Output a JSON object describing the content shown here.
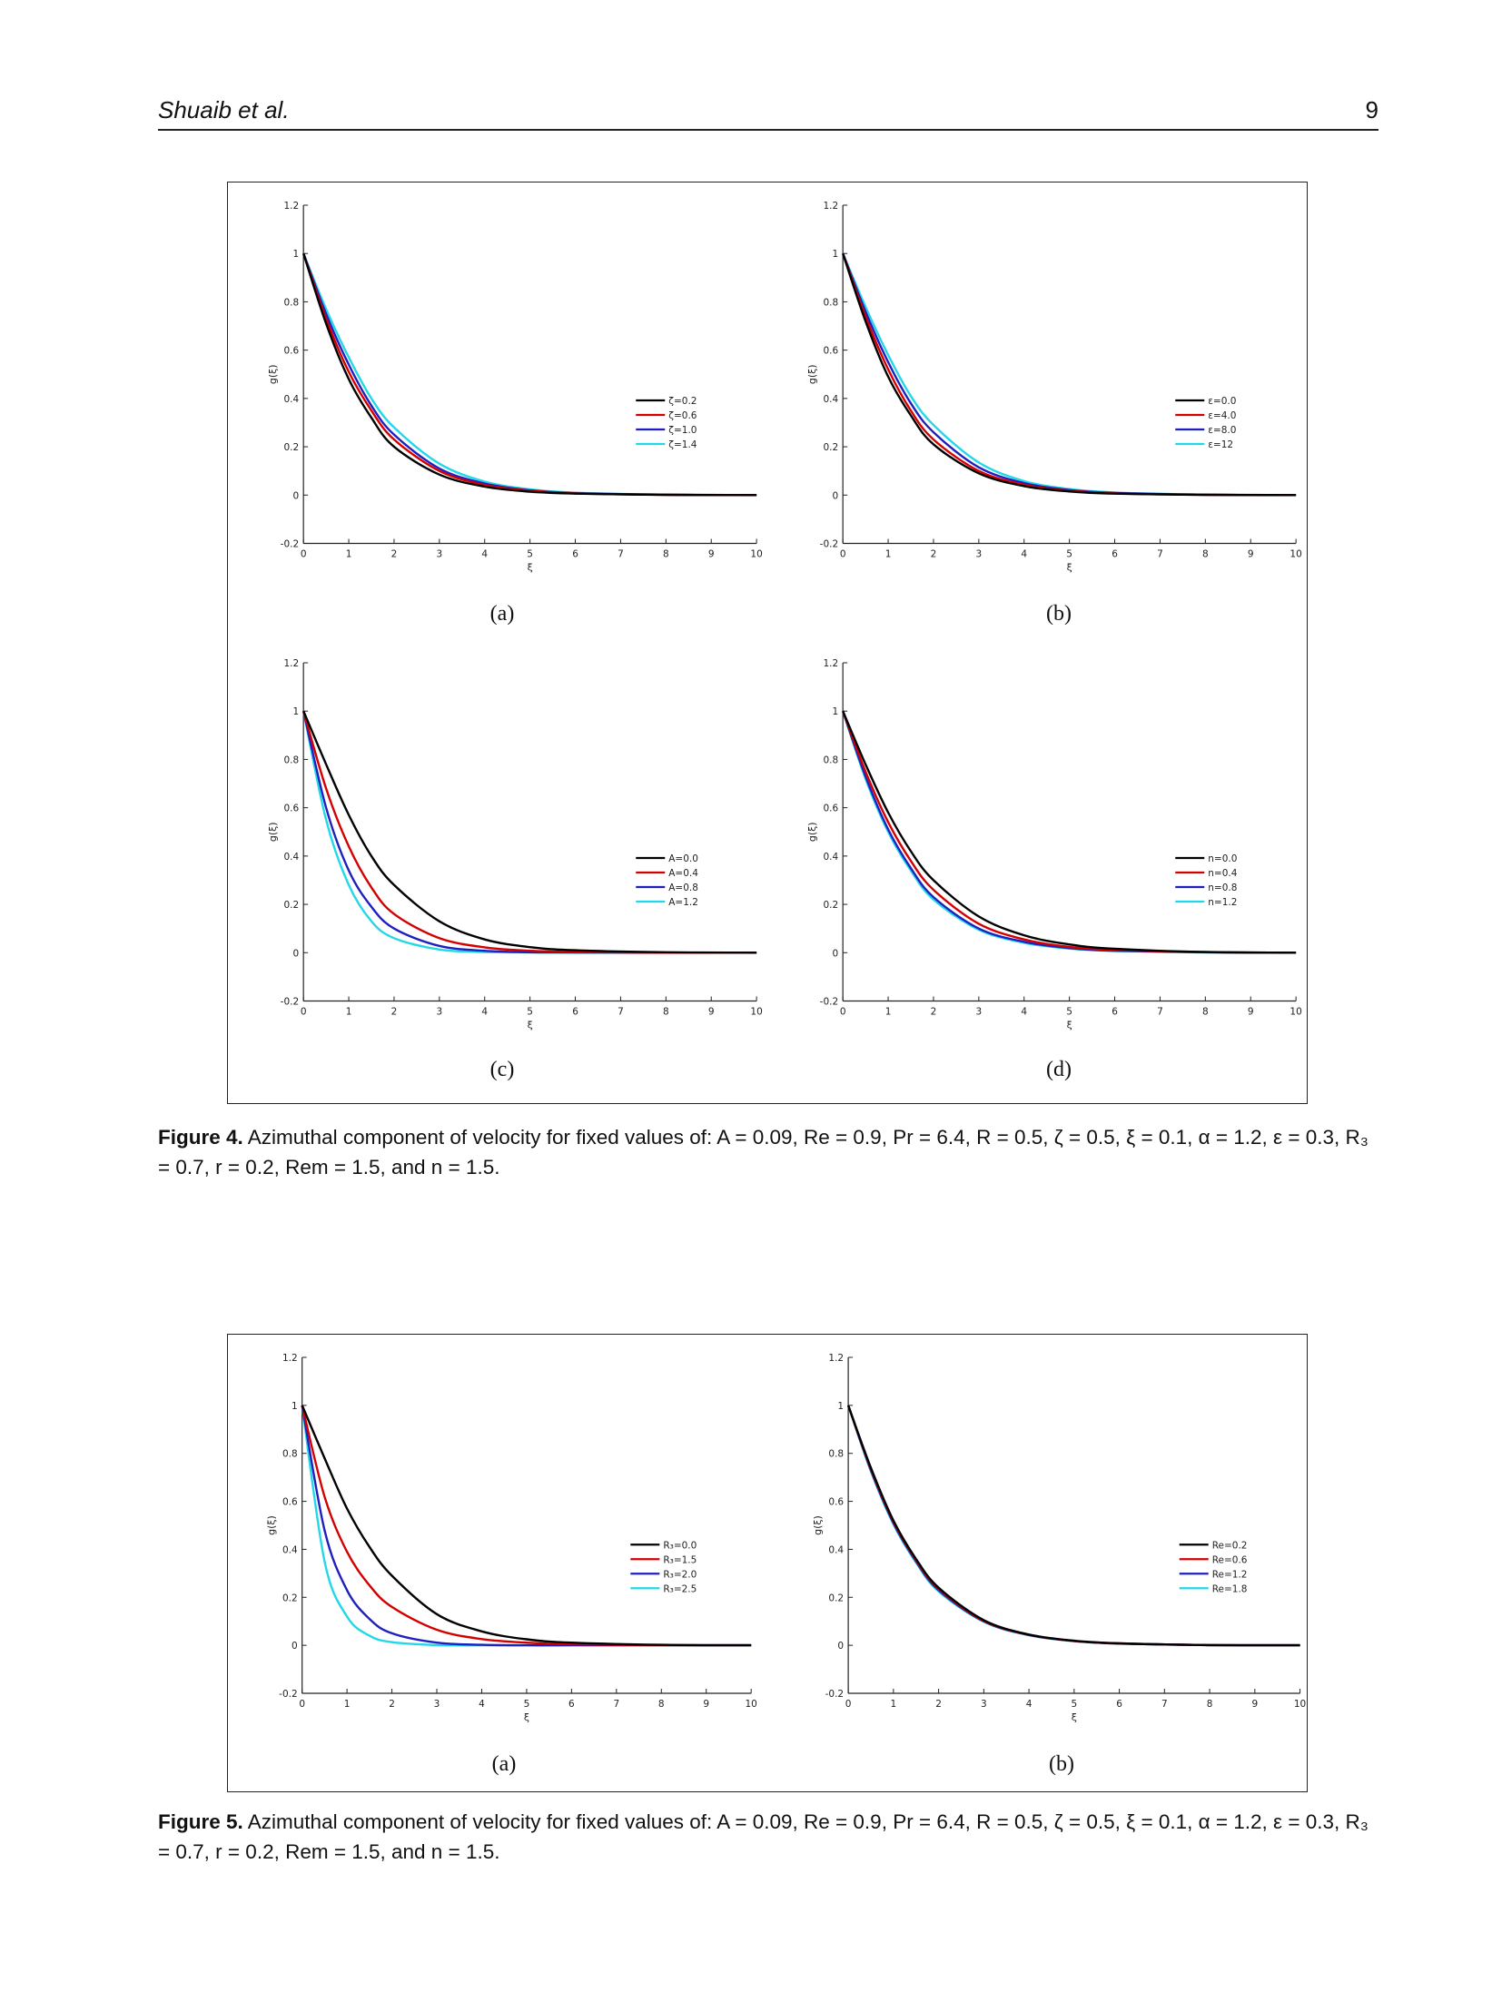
{
  "header": {
    "running_head": "Shuaib et al.",
    "page_number": "9"
  },
  "colors": {
    "series": [
      "#000000",
      "#d40000",
      "#1f1fbf",
      "#22d8e8"
    ]
  },
  "figures": [
    {
      "id": "fig4",
      "caption_label": "Figure 4.",
      "caption_text": "Azimuthal component of velocity for fixed values of: A = 0.09, Re = 0.9, Pr = 6.4, R = 0.5, ζ = 0.5, ξ = 0.1, α = 1.2, ε = 0.3, R₃ = 0.7, r = 0.2, Rem = 1.5, and n = 1.5.",
      "panels": [
        "(a)",
        "(b)",
        "(c)",
        "(d)"
      ]
    },
    {
      "id": "fig5",
      "caption_label": "Figure 5.",
      "caption_text": "Azimuthal component of velocity for fixed values of: A = 0.09, Re = 0.9, Pr = 6.4, R = 0.5, ζ = 0.5, ξ = 0.1, α = 1.2, ε = 0.3, R₃ = 0.7, r = 0.2, Rem = 1.5, and n = 1.5.",
      "panels": [
        "(a)",
        "(b)"
      ]
    }
  ],
  "chart_data": [
    {
      "id": "fig4a",
      "type": "line",
      "xlabel": "ξ",
      "ylabel": "g(ξ)",
      "xlim": [
        0,
        10
      ],
      "ylim": [
        -0.2,
        1.2
      ],
      "xticks": [
        "0",
        "1",
        "2",
        "3",
        "4",
        "5",
        "6",
        "7",
        "8",
        "9",
        "10"
      ],
      "yticks": [
        "-0.2",
        "0",
        "0.2",
        "0.4",
        "0.6",
        "0.8",
        "1",
        "1.2"
      ],
      "legend_position": "right-middle",
      "x": [
        0,
        0.5,
        1,
        1.5,
        2,
        3,
        4,
        5,
        6,
        8,
        10
      ],
      "series": [
        {
          "name": "ζ=0.2",
          "values": [
            1,
            0.71,
            0.48,
            0.32,
            0.2,
            0.085,
            0.035,
            0.014,
            0.006,
            0.001,
            0
          ]
        },
        {
          "name": "ζ=0.6",
          "values": [
            1,
            0.73,
            0.51,
            0.35,
            0.23,
            0.1,
            0.042,
            0.018,
            0.007,
            0.001,
            0
          ]
        },
        {
          "name": "ζ=1.0",
          "values": [
            1,
            0.75,
            0.54,
            0.37,
            0.25,
            0.11,
            0.048,
            0.02,
            0.008,
            0.002,
            0
          ]
        },
        {
          "name": "ζ=1.4",
          "values": [
            1,
            0.77,
            0.57,
            0.4,
            0.28,
            0.13,
            0.056,
            0.024,
            0.01,
            0.002,
            0
          ]
        }
      ]
    },
    {
      "id": "fig4b",
      "type": "line",
      "xlabel": "ξ",
      "ylabel": "g(ξ)",
      "xlim": [
        0,
        10
      ],
      "ylim": [
        -0.2,
        1.2
      ],
      "xticks": [
        "0",
        "1",
        "2",
        "3",
        "4",
        "5",
        "6",
        "7",
        "8",
        "9",
        "10"
      ],
      "yticks": [
        "-0.2",
        "0",
        "0.2",
        "0.4",
        "0.6",
        "0.8",
        "1",
        "1.2"
      ],
      "legend_position": "right-middle",
      "x": [
        0,
        0.5,
        1,
        1.5,
        2,
        3,
        4,
        5,
        6,
        8,
        10
      ],
      "series": [
        {
          "name": "ε=0.0",
          "values": [
            1,
            0.72,
            0.49,
            0.33,
            0.21,
            0.09,
            0.037,
            0.015,
            0.006,
            0.001,
            0
          ]
        },
        {
          "name": "ε=4.0",
          "values": [
            1,
            0.74,
            0.52,
            0.35,
            0.23,
            0.1,
            0.043,
            0.018,
            0.007,
            0.001,
            0
          ]
        },
        {
          "name": "ε=8.0",
          "values": [
            1,
            0.76,
            0.55,
            0.38,
            0.26,
            0.115,
            0.05,
            0.021,
            0.009,
            0.002,
            0
          ]
        },
        {
          "name": "ε=12",
          "values": [
            1,
            0.78,
            0.58,
            0.41,
            0.29,
            0.135,
            0.058,
            0.025,
            0.011,
            0.002,
            0
          ]
        }
      ]
    },
    {
      "id": "fig4c",
      "type": "line",
      "xlabel": "ξ",
      "ylabel": "g(ξ)",
      "xlim": [
        0,
        10
      ],
      "ylim": [
        -0.2,
        1.2
      ],
      "xticks": [
        "0",
        "1",
        "2",
        "3",
        "4",
        "5",
        "6",
        "7",
        "8",
        "9",
        "10"
      ],
      "yticks": [
        "-0.2",
        "0",
        "0.2",
        "0.4",
        "0.6",
        "0.8",
        "1",
        "1.2"
      ],
      "legend_position": "right-middle",
      "x": [
        0,
        0.5,
        1,
        1.5,
        2,
        3,
        4,
        5,
        6,
        8,
        10
      ],
      "series": [
        {
          "name": "A=0.0",
          "values": [
            1,
            0.78,
            0.57,
            0.4,
            0.28,
            0.13,
            0.055,
            0.023,
            0.01,
            0.002,
            0
          ]
        },
        {
          "name": "A=0.4",
          "values": [
            1,
            0.68,
            0.44,
            0.27,
            0.16,
            0.06,
            0.022,
            0.008,
            0.003,
            0,
            0
          ]
        },
        {
          "name": "A=0.8",
          "values": [
            1,
            0.6,
            0.34,
            0.19,
            0.1,
            0.028,
            0.008,
            0.002,
            0.001,
            0,
            0
          ]
        },
        {
          "name": "A=1.2",
          "values": [
            1,
            0.55,
            0.28,
            0.13,
            0.06,
            0.013,
            0.003,
            0.001,
            0,
            0,
            0
          ]
        }
      ]
    },
    {
      "id": "fig4d",
      "type": "line",
      "xlabel": "ξ",
      "ylabel": "g(ξ)",
      "xlim": [
        0,
        10
      ],
      "ylim": [
        -0.2,
        1.2
      ],
      "xticks": [
        "0",
        "1",
        "2",
        "3",
        "4",
        "5",
        "6",
        "7",
        "8",
        "9",
        "10"
      ],
      "yticks": [
        "-0.2",
        "0",
        "0.2",
        "0.4",
        "0.6",
        "0.8",
        "1",
        "1.2"
      ],
      "legend_position": "right-middle",
      "x": [
        0,
        0.5,
        1,
        1.5,
        2,
        3,
        4,
        5,
        6,
        8,
        10
      ],
      "series": [
        {
          "name": "n=0.0",
          "values": [
            1,
            0.78,
            0.58,
            0.42,
            0.3,
            0.15,
            0.072,
            0.034,
            0.016,
            0.003,
            0
          ]
        },
        {
          "name": "n=0.4",
          "values": [
            1,
            0.75,
            0.54,
            0.38,
            0.26,
            0.12,
            0.055,
            0.024,
            0.011,
            0.002,
            0
          ]
        },
        {
          "name": "n=0.8",
          "values": [
            1,
            0.73,
            0.51,
            0.35,
            0.23,
            0.1,
            0.045,
            0.019,
            0.008,
            0.002,
            0
          ]
        },
        {
          "name": "n=1.2",
          "values": [
            1,
            0.72,
            0.5,
            0.34,
            0.22,
            0.095,
            0.041,
            0.017,
            0.007,
            0.001,
            0
          ]
        }
      ]
    },
    {
      "id": "fig5a",
      "type": "line",
      "xlabel": "ξ",
      "ylabel": "g(ξ)",
      "xlim": [
        0,
        10
      ],
      "ylim": [
        -0.2,
        1.2
      ],
      "xticks": [
        "0",
        "1",
        "2",
        "3",
        "4",
        "5",
        "6",
        "7",
        "8",
        "9",
        "10"
      ],
      "yticks": [
        "-0.2",
        "0",
        "0.2",
        "0.4",
        "0.6",
        "0.8",
        "1",
        "1.2"
      ],
      "legend_position": "right-middle",
      "x": [
        0,
        0.5,
        1,
        1.5,
        2,
        3,
        4,
        5,
        6,
        8,
        10
      ],
      "series": [
        {
          "name": "R₃=0.0",
          "values": [
            1,
            0.78,
            0.57,
            0.41,
            0.29,
            0.13,
            0.058,
            0.025,
            0.011,
            0.002,
            0
          ]
        },
        {
          "name": "R₃=1.5",
          "values": [
            1,
            0.62,
            0.39,
            0.25,
            0.16,
            0.065,
            0.026,
            0.011,
            0.004,
            0.001,
            0
          ]
        },
        {
          "name": "R₃=2.0",
          "values": [
            1,
            0.48,
            0.23,
            0.11,
            0.05,
            0.011,
            0.002,
            0,
            0,
            0,
            0
          ]
        },
        {
          "name": "R₃=2.5",
          "values": [
            1,
            0.35,
            0.12,
            0.04,
            0.013,
            0.001,
            0,
            0,
            0,
            0,
            0
          ]
        }
      ]
    },
    {
      "id": "fig5b",
      "type": "line",
      "xlabel": "ξ",
      "ylabel": "g(ξ)",
      "xlim": [
        0,
        10
      ],
      "ylim": [
        -0.2,
        1.2
      ],
      "xticks": [
        "0",
        "1",
        "2",
        "3",
        "4",
        "5",
        "6",
        "7",
        "8",
        "9",
        "10"
      ],
      "yticks": [
        "-0.2",
        "0",
        "0.2",
        "0.4",
        "0.6",
        "0.8",
        "1",
        "1.2"
      ],
      "legend_position": "right-middle",
      "x": [
        0,
        0.5,
        1,
        1.5,
        2,
        3,
        4,
        5,
        6,
        8,
        10
      ],
      "series": [
        {
          "name": "Re=0.2",
          "values": [
            1,
            0.74,
            0.52,
            0.36,
            0.24,
            0.105,
            0.045,
            0.019,
            0.008,
            0.001,
            0
          ]
        },
        {
          "name": "Re=0.6",
          "values": [
            1,
            0.735,
            0.515,
            0.355,
            0.235,
            0.102,
            0.044,
            0.018,
            0.008,
            0.001,
            0
          ]
        },
        {
          "name": "Re=1.2",
          "values": [
            1,
            0.73,
            0.51,
            0.35,
            0.23,
            0.1,
            0.043,
            0.018,
            0.007,
            0.001,
            0
          ]
        },
        {
          "name": "Re=1.8",
          "values": [
            1,
            0.725,
            0.505,
            0.345,
            0.225,
            0.098,
            0.042,
            0.017,
            0.007,
            0.001,
            0
          ]
        }
      ]
    }
  ]
}
